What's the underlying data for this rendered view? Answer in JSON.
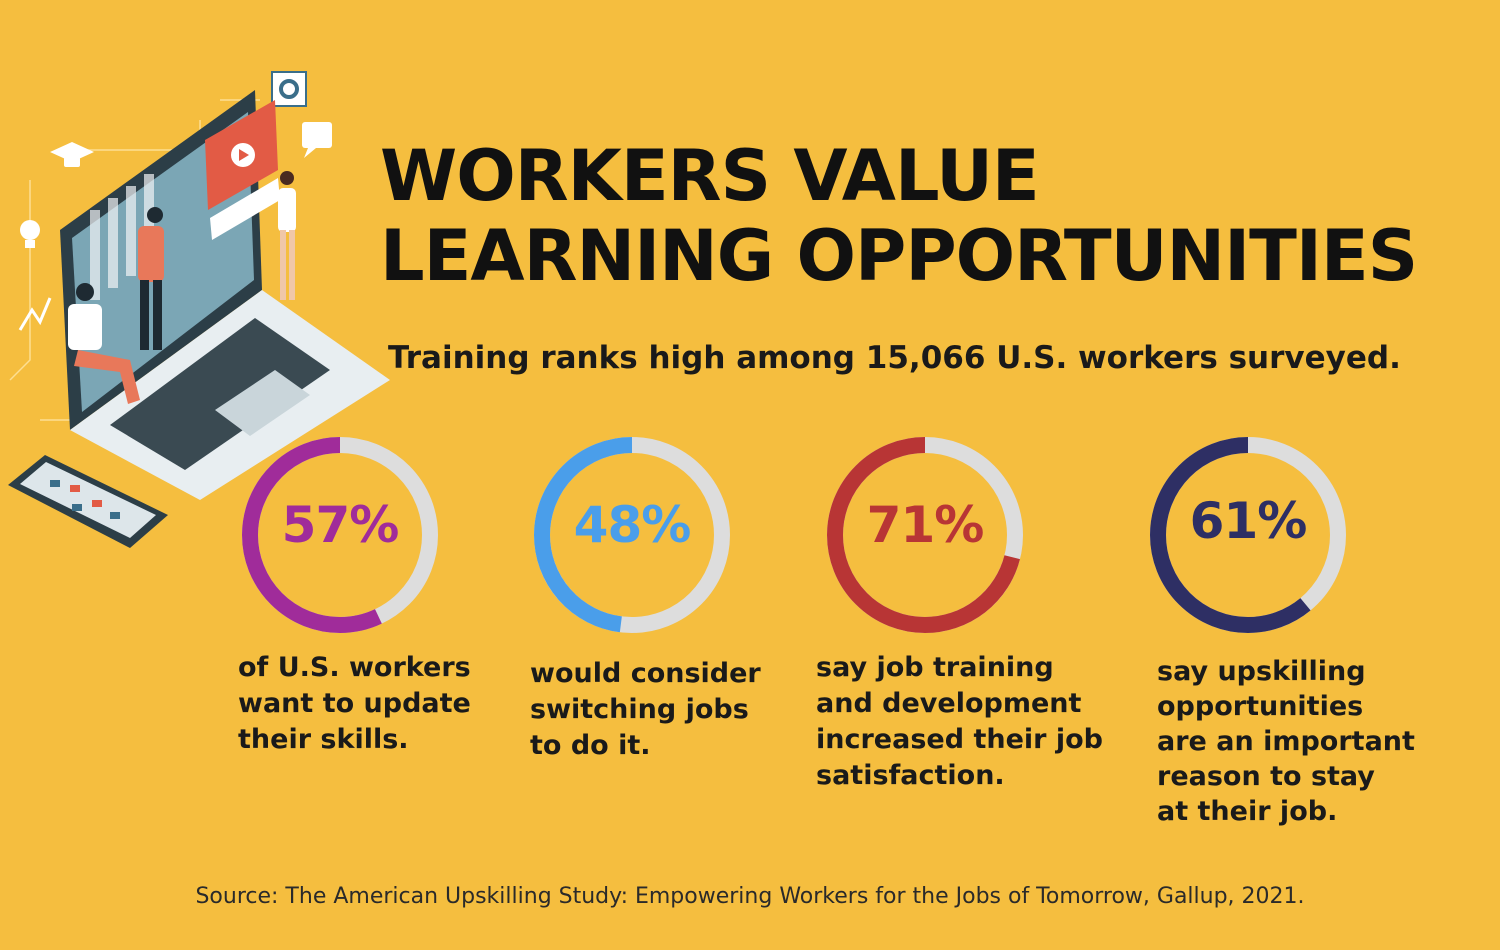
{
  "title_lines": [
    "WORKERS VALUE",
    "LEARNING OPPORTUNITIES"
  ],
  "subtitle": "Training ranks high among 15,066 U.S. workers surveyed.",
  "source": "Source: The American Upskilling Study: Empowering Workers for the Jobs of Tomorrow, Gallup, 2021.",
  "colors": {
    "background": "#F5BE3F",
    "ring_track": "#DDDDDD"
  },
  "chart_data": {
    "type": "pie",
    "stats": [
      {
        "value": 57,
        "label": "57%",
        "color": "#A02C9A",
        "description_lines": [
          "of U.S. workers",
          "want to update",
          "their skills."
        ]
      },
      {
        "value": 48,
        "label": "48%",
        "color": "#4A9EEA",
        "description_lines": [
          "would consider",
          "switching jobs",
          "to do it."
        ]
      },
      {
        "value": 71,
        "label": "71%",
        "color": "#B83535",
        "description_lines": [
          "say job training",
          "and development",
          "increased their job",
          "satisfaction."
        ]
      },
      {
        "value": 61,
        "label": "61%",
        "color": "#2E2F64",
        "description_lines": [
          "say upskilling",
          "opportunities",
          "are an important",
          "reason to stay",
          "at their job."
        ]
      }
    ]
  }
}
